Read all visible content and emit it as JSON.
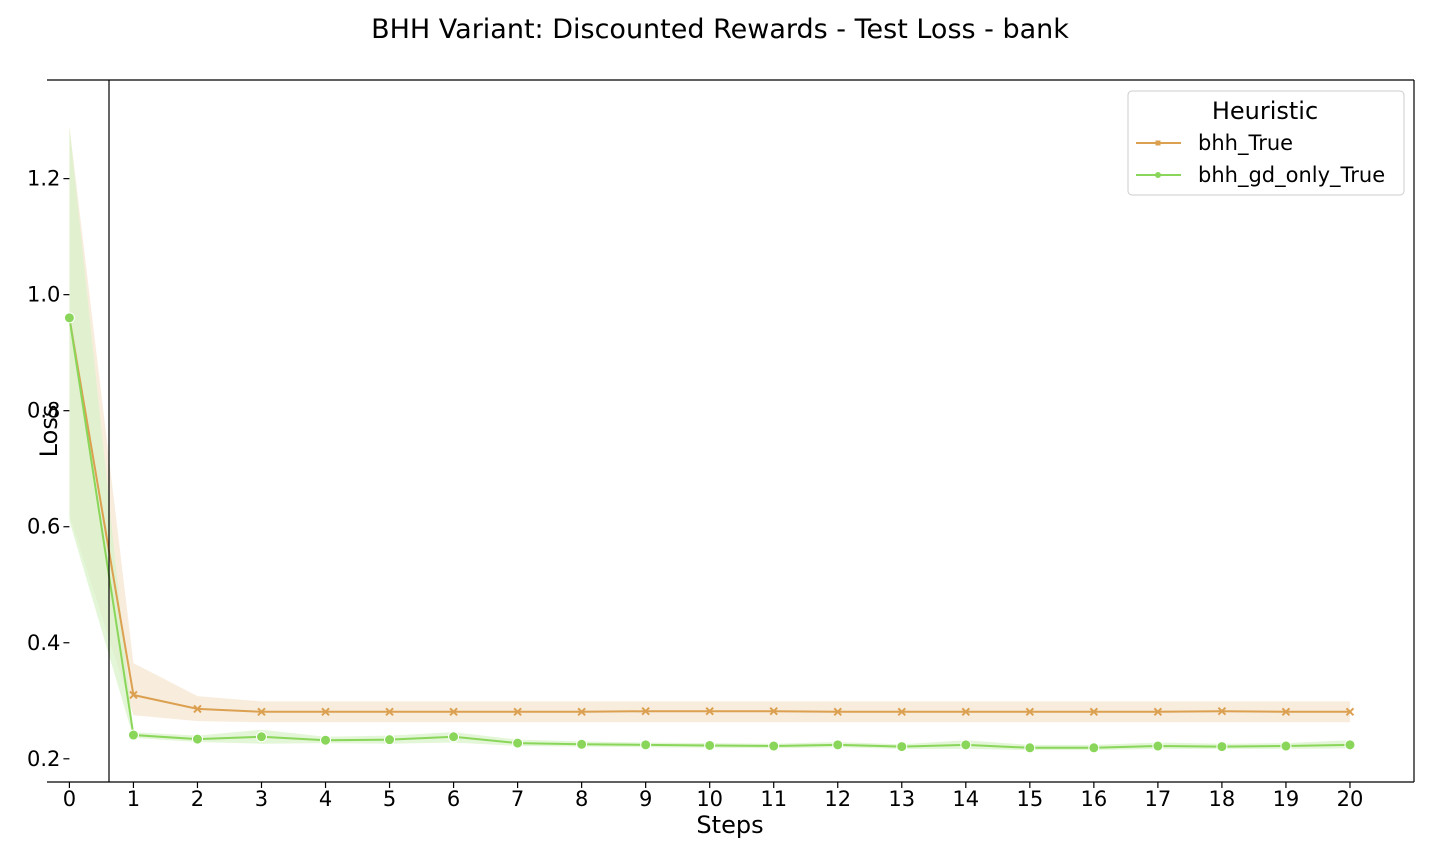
{
  "chart_data": {
    "type": "line",
    "title": "BHH Variant: Discounted Rewards - Test Loss - bank",
    "xlabel": "Steps",
    "ylabel": "Loss",
    "xlim": [
      -0.35,
      21.0
    ],
    "ylim": [
      0.16,
      1.37
    ],
    "x": [
      0,
      1,
      2,
      3,
      4,
      5,
      6,
      7,
      8,
      9,
      10,
      11,
      12,
      13,
      14,
      15,
      16,
      17,
      18,
      19,
      20
    ],
    "xticks": [
      0,
      1,
      2,
      3,
      4,
      5,
      6,
      7,
      8,
      9,
      10,
      11,
      12,
      13,
      14,
      15,
      16,
      17,
      18,
      19,
      20
    ],
    "yticks": [
      0.2,
      0.4,
      0.6,
      0.8,
      1.0,
      1.2
    ],
    "ytick_labels": [
      "0.2",
      "0.4",
      "0.6",
      "0.8",
      "1.0",
      "1.2"
    ],
    "grid": false,
    "legend": {
      "title": "Heuristic",
      "position": "top-right"
    },
    "series": [
      {
        "name": "bhh_True",
        "color": "#dba050",
        "band_color": "#f5e6d2",
        "marker": "x",
        "values": [
          0.96,
          0.31,
          0.286,
          0.281,
          0.281,
          0.281,
          0.281,
          0.281,
          0.281,
          0.282,
          0.282,
          0.282,
          0.281,
          0.281,
          0.281,
          0.281,
          0.281,
          0.281,
          0.282,
          0.281,
          0.281
        ],
        "lower": [
          0.62,
          0.275,
          0.265,
          0.263,
          0.263,
          0.263,
          0.263,
          0.263,
          0.263,
          0.263,
          0.263,
          0.263,
          0.263,
          0.263,
          0.263,
          0.263,
          0.263,
          0.263,
          0.263,
          0.263,
          0.263
        ],
        "upper": [
          1.29,
          0.365,
          0.308,
          0.299,
          0.299,
          0.299,
          0.299,
          0.299,
          0.299,
          0.299,
          0.299,
          0.299,
          0.299,
          0.299,
          0.299,
          0.299,
          0.299,
          0.299,
          0.299,
          0.299,
          0.299
        ]
      },
      {
        "name": "bhh_gd_only_True",
        "color": "#8ad65a",
        "band_color": "#d9f3c9",
        "marker": "o",
        "values": [
          0.96,
          0.241,
          0.234,
          0.238,
          0.232,
          0.233,
          0.238,
          0.227,
          0.225,
          0.224,
          0.223,
          0.222,
          0.224,
          0.221,
          0.224,
          0.219,
          0.219,
          0.222,
          0.221,
          0.222,
          0.224
        ],
        "lower": [
          0.61,
          0.236,
          0.229,
          0.226,
          0.227,
          0.226,
          0.228,
          0.222,
          0.221,
          0.22,
          0.219,
          0.218,
          0.22,
          0.217,
          0.217,
          0.215,
          0.215,
          0.217,
          0.217,
          0.217,
          0.218
        ],
        "upper": [
          1.29,
          0.246,
          0.24,
          0.25,
          0.238,
          0.24,
          0.246,
          0.233,
          0.23,
          0.228,
          0.227,
          0.226,
          0.229,
          0.225,
          0.232,
          0.224,
          0.224,
          0.228,
          0.226,
          0.227,
          0.232
        ]
      }
    ]
  }
}
